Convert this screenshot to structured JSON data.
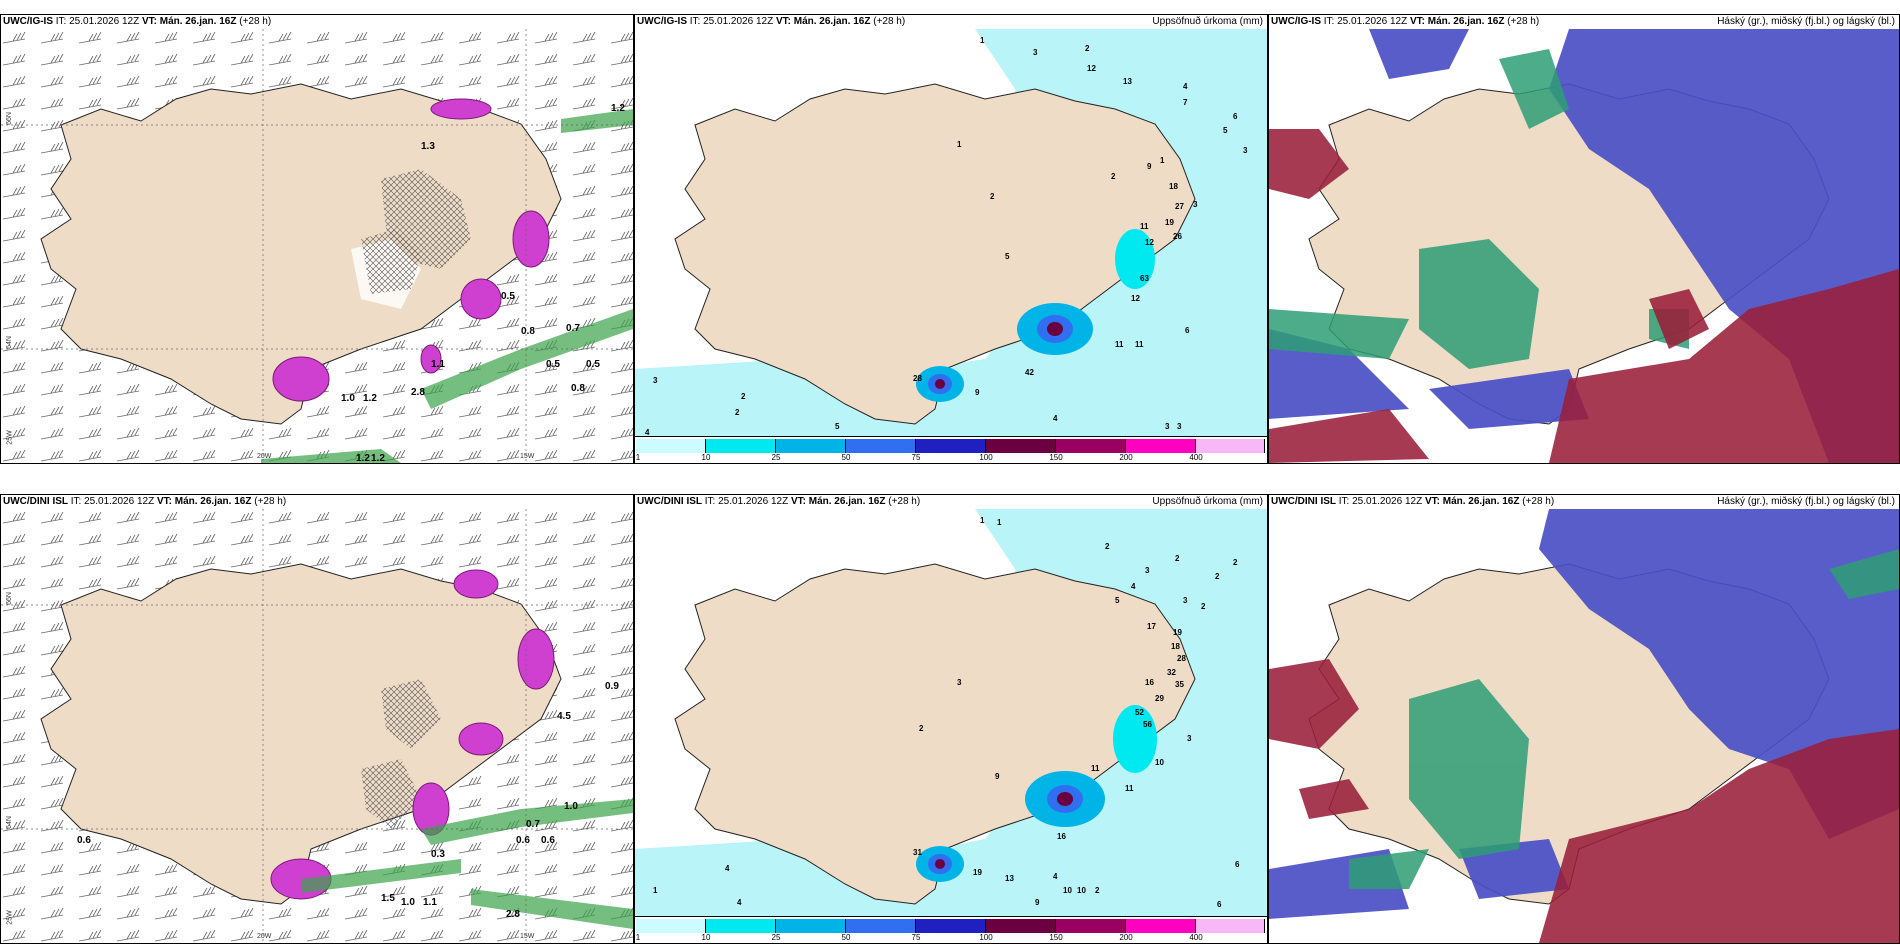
{
  "header_common": {
    "it_label": "IT:",
    "it_time": "25.01.2026 12Z",
    "vt_label": "VT:",
    "vt_time": "Mán. 26.jan. 16Z",
    "lead": "(+28 h)"
  },
  "rows": [
    {
      "model": "UWC/IG-IS",
      "panels": {
        "wind": {
          "product": ""
        },
        "precip": {
          "product": "Uppsöfnuð úrkoma (mm)"
        },
        "cloud": {
          "product": "Háský (gr.), miðský (fj.bl.) og lágský (bl.)"
        }
      }
    },
    {
      "model": "UWC/DINI ISL",
      "panels": {
        "wind": {
          "product": ""
        },
        "precip": {
          "product": "Uppsöfnuð úrkoma (mm)"
        },
        "cloud": {
          "product": "Háský (gr.), miðský (fj.bl.) og lágský (bl.)"
        }
      }
    }
  ],
  "coord_labels": {
    "lat66": "66N",
    "lat64": "64N",
    "lat63": "25W",
    "lon20": "20W",
    "lon15": "15W"
  },
  "colorbar": {
    "ticks": [
      "1",
      "10",
      "25",
      "50",
      "75",
      "100",
      "150",
      "200",
      "400"
    ],
    "colors": [
      "#ccfcff",
      "#00e8f0",
      "#00b4e8",
      "#3070f0",
      "#2020c0",
      "#6a0040",
      "#9a0060",
      "#ff00c0",
      "#f8b8f8"
    ]
  },
  "map_values": {
    "wind_top": [
      "1.2",
      "0.8",
      "0.7",
      "0.5",
      "0.5",
      "0.8",
      "1.1",
      "1.0",
      "1.2",
      "2.8",
      "0.5",
      "1.3",
      "1.2",
      "1.2"
    ],
    "wind_bottom": [
      "0.9",
      "4.5",
      "1.0",
      "0.6",
      "0.7",
      "0.6",
      "0.3",
      "1.0",
      "1.1",
      "1.5",
      "2.8",
      "0.6"
    ],
    "precip_top": [
      "1",
      "3",
      "2",
      "12",
      "13",
      "4",
      "7",
      "6",
      "5",
      "3",
      "1",
      "2",
      "9",
      "18",
      "27",
      "19",
      "26",
      "11",
      "12",
      "3",
      "63",
      "12",
      "11",
      "11",
      "6",
      "42",
      "28",
      "9",
      "4",
      "3",
      "3",
      "5",
      "3",
      "2",
      "2",
      "4",
      "1",
      "2",
      "5"
    ],
    "precip_bottom": [
      "1",
      "1",
      "2",
      "2",
      "2",
      "2",
      "3",
      "4",
      "5",
      "3",
      "2",
      "17",
      "19",
      "18",
      "28",
      "32",
      "35",
      "16",
      "29",
      "52",
      "56",
      "3",
      "11",
      "10",
      "11",
      "16",
      "13",
      "19",
      "31",
      "9",
      "10",
      "10",
      "4",
      "2",
      "1",
      "4",
      "4",
      "3",
      "2",
      "6",
      "6",
      "9"
    ]
  },
  "colors": {
    "land": "#efdcc7",
    "sea_precip": "#b8f4f8",
    "low_cloud": "#4a4fc6",
    "mid_cloud": "#2e9d74",
    "high_cloud": "#9a1f3a",
    "precip_magenta": "#d040d0",
    "wind_green": "#3aa34a"
  }
}
